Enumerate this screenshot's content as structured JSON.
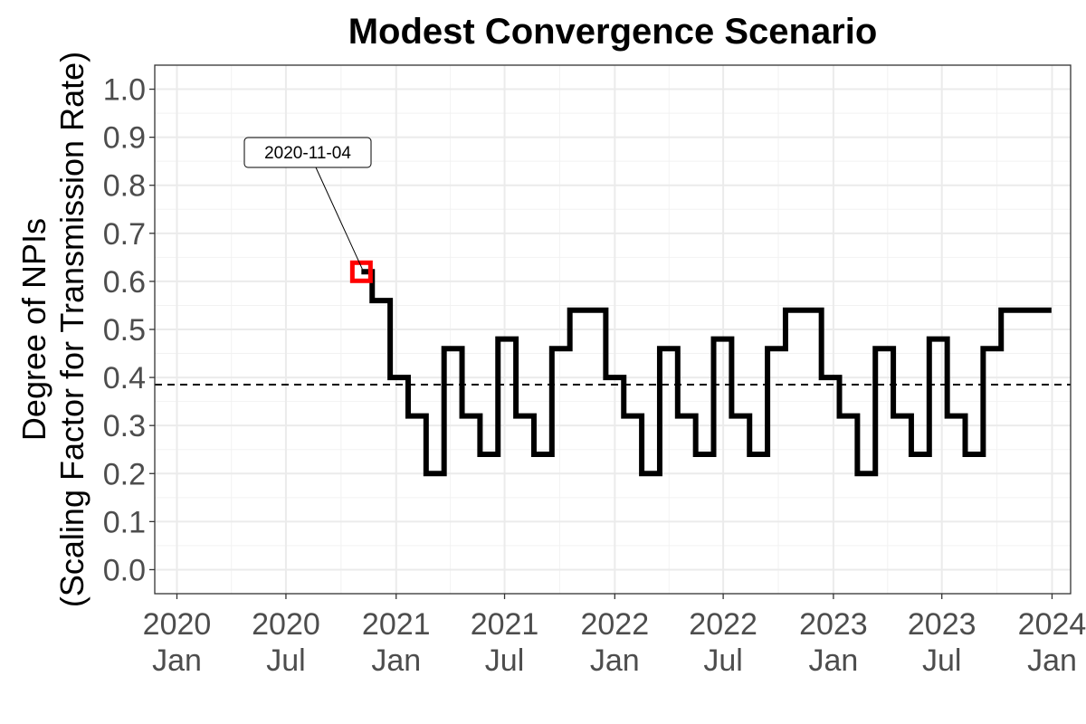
{
  "chart_data": {
    "type": "line",
    "title": "Modest Convergence Scenario",
    "xlabel": "",
    "ylabel_line1": "Degree of NPIs",
    "ylabel_line2": "(Scaling Factor for Transmission Rate)",
    "xlim": [
      "2019-11-25",
      "2024-02-01"
    ],
    "ylim": [
      -0.05,
      1.05
    ],
    "grid": true,
    "legend": "none",
    "x_ticks": [
      {
        "date": "2020-01-01",
        "line1": "2020",
        "line2": "Jan"
      },
      {
        "date": "2020-07-01",
        "line1": "2020",
        "line2": "Jul"
      },
      {
        "date": "2021-01-01",
        "line1": "2021",
        "line2": "Jan"
      },
      {
        "date": "2021-07-01",
        "line1": "2021",
        "line2": "Jul"
      },
      {
        "date": "2022-01-01",
        "line1": "2022",
        "line2": "Jan"
      },
      {
        "date": "2022-07-01",
        "line1": "2022",
        "line2": "Jul"
      },
      {
        "date": "2023-01-01",
        "line1": "2023",
        "line2": "Jan"
      },
      {
        "date": "2023-07-01",
        "line1": "2023",
        "line2": "Jul"
      },
      {
        "date": "2024-01-01",
        "line1": "2024",
        "line2": "Jan"
      }
    ],
    "y_ticks": [
      {
        "value": 0.0,
        "label": "0.0"
      },
      {
        "value": 0.1,
        "label": "0.1"
      },
      {
        "value": 0.2,
        "label": "0.2"
      },
      {
        "value": 0.3,
        "label": "0.3"
      },
      {
        "value": 0.4,
        "label": "0.4"
      },
      {
        "value": 0.5,
        "label": "0.5"
      },
      {
        "value": 0.6,
        "label": "0.6"
      },
      {
        "value": 0.7,
        "label": "0.7"
      },
      {
        "value": 0.8,
        "label": "0.8"
      },
      {
        "value": 0.9,
        "label": "0.9"
      },
      {
        "value": 1.0,
        "label": "1.0"
      }
    ],
    "series": [
      {
        "step": "hv",
        "color": "#000000",
        "x": [
          "2020-11-04",
          "2020-11-22",
          "2020-12-22",
          "2021-01-21",
          "2021-02-20",
          "2021-03-22",
          "2021-04-21",
          "2021-05-21",
          "2021-06-20",
          "2021-07-20",
          "2021-08-19",
          "2021-09-18",
          "2021-10-18",
          "2021-11-17",
          "2021-12-17",
          "2022-01-16",
          "2022-02-15",
          "2022-03-17",
          "2022-04-16",
          "2022-05-16",
          "2022-06-15",
          "2022-07-15",
          "2022-08-14",
          "2022-09-13",
          "2022-10-13",
          "2022-11-12",
          "2022-12-12",
          "2023-01-11",
          "2023-02-10",
          "2023-03-12",
          "2023-04-11",
          "2023-05-11",
          "2023-06-10",
          "2023-07-10",
          "2023-08-09",
          "2023-09-08",
          "2023-10-08",
          "2023-11-07",
          "2023-12-31"
        ],
        "y": [
          0.62,
          0.56,
          0.4,
          0.32,
          0.2,
          0.46,
          0.32,
          0.24,
          0.48,
          0.32,
          0.24,
          0.46,
          0.54,
          0.54,
          0.4,
          0.32,
          0.2,
          0.46,
          0.32,
          0.24,
          0.48,
          0.32,
          0.24,
          0.46,
          0.54,
          0.54,
          0.4,
          0.32,
          0.2,
          0.46,
          0.32,
          0.24,
          0.48,
          0.32,
          0.24,
          0.46,
          0.54,
          0.54,
          0.54
        ]
      }
    ],
    "hline": {
      "y": 0.385,
      "style": "dashed",
      "color": "#000000"
    },
    "annotation": {
      "label": "2020-11-04",
      "x": "2020-11-04",
      "y": 0.62,
      "marker_color": "#ff0000"
    }
  }
}
